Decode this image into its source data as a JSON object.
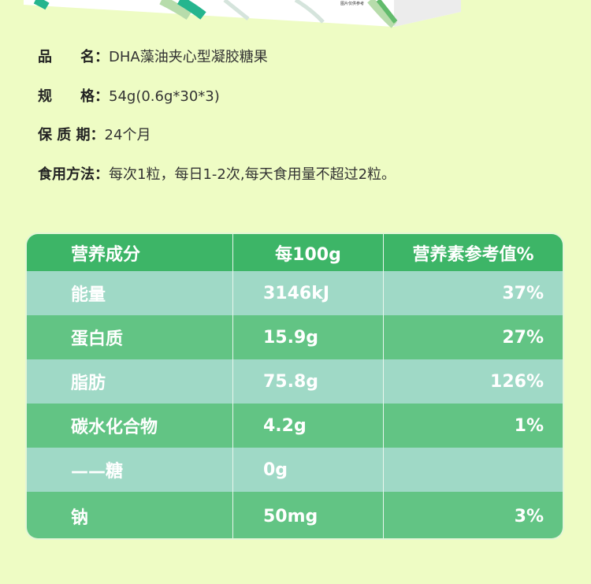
{
  "product_image": {
    "note_text": "图片仅供参考"
  },
  "info": [
    {
      "label": "品　　名：",
      "value": "DHA藻油夹心型凝胶糖果"
    },
    {
      "label": "规　　格：",
      "value": "54g(0.6g*30*3)"
    },
    {
      "label": "保 质 期：",
      "value": "24个月"
    },
    {
      "label": "食用方法：",
      "value": "每次1粒，每日1-2次,每天食用量不超过2粒。"
    }
  ],
  "table": {
    "headers": [
      "营养成分",
      "每100g",
      "营养素参考值%"
    ],
    "rows": [
      [
        "能量",
        "3146kJ",
        "37%"
      ],
      [
        "蛋白质",
        "15.9g",
        "27%"
      ],
      [
        "脂肪",
        "75.8g",
        "126%"
      ],
      [
        "碳水化合物",
        "4.2g",
        "1%"
      ],
      [
        "——糖",
        "0g",
        ""
      ],
      [
        "钠",
        "50mg",
        "3%"
      ]
    ]
  },
  "colors": {
    "background": "#eefcc4",
    "header": "#3db567",
    "row_light": "#9fd9c6",
    "row_dark": "#62c484"
  }
}
